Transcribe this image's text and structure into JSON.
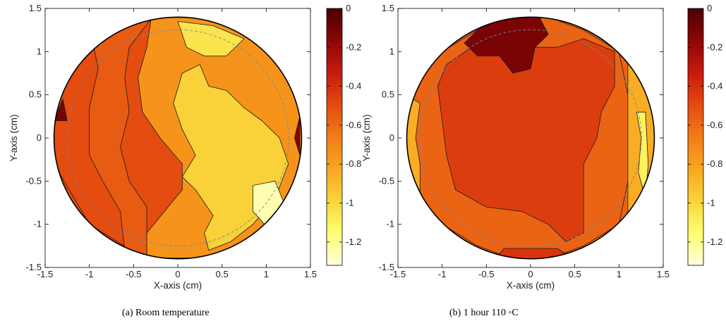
{
  "colormap": {
    "name": "hot-reversed",
    "stops": [
      "#4a0000",
      "#8c0606",
      "#c81a0c",
      "#e44a10",
      "#f17d16",
      "#f8a620",
      "#f9d43a",
      "#ffff70",
      "#fffde0"
    ]
  },
  "chart_data": [
    {
      "type": "heatmap",
      "caption": "(a) Room temperature",
      "xlabel": "X-axis (cm)",
      "ylabel": "Y-axis (cm)",
      "xlim": [
        -1.5,
        1.5
      ],
      "ylim": [
        -1.5,
        1.5
      ],
      "xticks": [
        -1.5,
        -1,
        -0.5,
        0,
        0.5,
        1,
        1.5
      ],
      "yticks": [
        -1.5,
        -1,
        -0.5,
        0,
        0.5,
        1,
        1.5
      ],
      "xtick_labels": [
        "-1.5",
        "-1",
        "-0.5",
        "0",
        "0.5",
        "1",
        "1.5"
      ],
      "ytick_labels": [
        "-1.5",
        "-1",
        "-0.5",
        "0",
        "0.5",
        "1",
        "1.5"
      ],
      "colorbar": {
        "range": [
          -1.32,
          0
        ],
        "ticks": [
          0,
          -0.2,
          -0.4,
          -0.6,
          -0.8,
          -1,
          -1.2
        ],
        "tick_labels": [
          "0",
          "-0.2",
          "-0.4",
          "-0.6",
          "-0.8",
          "-1",
          "-1.2"
        ]
      },
      "wafer_radius": 1.4,
      "levels": [
        {
          "value": -0.5,
          "polygon": [
            [
              -1.4,
              0
            ],
            [
              1.4,
              0
            ]
          ]
        }
      ],
      "regions": [
        {
          "value": -0.5,
          "points": [
            [
              -1.3,
              1.0
            ],
            [
              -0.8,
              1.3
            ],
            [
              -0.55,
              1.3
            ],
            [
              -0.75,
              0.9
            ],
            [
              -0.9,
              0.6
            ],
            [
              -0.9,
              -0.3
            ],
            [
              -0.7,
              -0.6
            ],
            [
              -0.55,
              -1.0
            ],
            [
              -0.4,
              -1.38
            ],
            [
              -1.0,
              -1.0
            ],
            [
              -1.4,
              -0.3
            ],
            [
              -1.4,
              0.4
            ]
          ]
        },
        {
          "value": -0.55,
          "points": [
            [
              -1.0,
              1.3
            ],
            [
              -0.55,
              1.36
            ],
            [
              -0.3,
              1.38
            ],
            [
              -0.55,
              1.05
            ],
            [
              -0.6,
              0.7
            ],
            [
              -0.55,
              0.3
            ],
            [
              -0.65,
              -0.1
            ],
            [
              -0.55,
              -0.5
            ],
            [
              -0.35,
              -0.8
            ],
            [
              -0.35,
              -1.1
            ],
            [
              -0.35,
              -1.39
            ],
            [
              -0.6,
              -1.3
            ],
            [
              -0.65,
              -0.85
            ],
            [
              -0.85,
              -0.5
            ],
            [
              -1.0,
              -0.2
            ],
            [
              -1.0,
              0.35
            ],
            [
              -0.9,
              0.8
            ]
          ]
        },
        {
          "value": -0.75,
          "points": [
            [
              -0.3,
              1.39
            ],
            [
              0.3,
              1.4
            ],
            [
              0.8,
              1.2
            ],
            [
              1.25,
              0.8
            ],
            [
              1.4,
              0.3
            ],
            [
              1.4,
              -0.3
            ],
            [
              1.2,
              -0.85
            ],
            [
              0.8,
              -1.2
            ],
            [
              0.3,
              -1.39
            ],
            [
              -0.35,
              -1.39
            ],
            [
              -0.35,
              -1.1
            ],
            [
              -0.15,
              -0.85
            ],
            [
              0.05,
              -0.6
            ],
            [
              0.05,
              -0.3
            ],
            [
              -0.2,
              0.0
            ],
            [
              -0.4,
              0.3
            ],
            [
              -0.45,
              0.7
            ],
            [
              -0.35,
              1.05
            ]
          ]
        },
        {
          "value": -0.98,
          "points": [
            [
              0.05,
              0.75
            ],
            [
              0.25,
              0.85
            ],
            [
              0.35,
              0.6
            ],
            [
              0.55,
              0.55
            ],
            [
              0.75,
              0.35
            ],
            [
              0.95,
              0.2
            ],
            [
              1.15,
              0.0
            ],
            [
              1.25,
              -0.3
            ],
            [
              1.1,
              -0.7
            ],
            [
              0.85,
              -1.0
            ],
            [
              0.6,
              -1.2
            ],
            [
              0.35,
              -1.3
            ],
            [
              0.3,
              -1.1
            ],
            [
              0.4,
              -0.9
            ],
            [
              0.2,
              -0.6
            ],
            [
              0.05,
              -0.45
            ],
            [
              0.2,
              -0.2
            ],
            [
              0.05,
              0.1
            ],
            [
              -0.05,
              0.4
            ]
          ]
        },
        {
          "value": -1.05,
          "points": [
            [
              0.0,
              1.35
            ],
            [
              0.4,
              1.3
            ],
            [
              0.75,
              1.15
            ],
            [
              0.55,
              0.95
            ],
            [
              0.3,
              0.95
            ],
            [
              0.1,
              1.05
            ]
          ]
        },
        {
          "value": -1.25,
          "points": [
            [
              0.85,
              -0.55
            ],
            [
              1.1,
              -0.5
            ],
            [
              1.2,
              -0.75
            ],
            [
              0.98,
              -1.0
            ],
            [
              0.85,
              -0.85
            ]
          ]
        },
        {
          "value": -0.1,
          "points": [
            [
              -1.4,
              0.2
            ],
            [
              -1.3,
              0.45
            ],
            [
              -1.25,
              0.2
            ]
          ]
        },
        {
          "value": -0.15,
          "points": [
            [
              1.38,
              0.25
            ],
            [
              1.38,
              -0.2
            ],
            [
              1.32,
              0.0
            ]
          ]
        }
      ]
    },
    {
      "type": "heatmap",
      "caption": "(b) 1 hour 110 ◦C",
      "xlabel": "X-axis (cm)",
      "ylabel": "Y-axis (cm)",
      "xlim": [
        -1.5,
        1.5
      ],
      "ylim": [
        -1.5,
        1.5
      ],
      "xticks": [
        -1.5,
        -1,
        -0.5,
        0,
        0.5,
        1,
        1.5
      ],
      "yticks": [
        -1.5,
        -1,
        -0.5,
        0,
        0.5,
        1,
        1.5
      ],
      "xtick_labels": [
        "-1.5",
        "-1",
        "-0.5",
        "0",
        "0.5",
        "1",
        "1.5"
      ],
      "ytick_labels": [
        "-1.5",
        "-1",
        "-0.5",
        "0",
        "0.5",
        "1",
        "1.5"
      ],
      "colorbar": {
        "range": [
          -1.32,
          0
        ],
        "ticks": [
          0,
          -0.2,
          -0.4,
          -0.6,
          -0.8,
          -1,
          -1.2
        ],
        "tick_labels": [
          "0",
          "-0.2",
          "-0.4",
          "-0.6",
          "-0.8",
          "-1",
          "-1.2"
        ]
      },
      "wafer_radius": 1.4,
      "regions": [
        {
          "value": -0.58,
          "points": [
            [
              -1.4,
              0.6
            ],
            [
              -1.4,
              -0.6
            ],
            [
              -1.0,
              -1.0
            ],
            [
              -0.6,
              -1.25
            ],
            [
              -0.2,
              -1.4
            ],
            [
              0.2,
              -1.4
            ],
            [
              0.6,
              -1.25
            ],
            [
              1.0,
              -1.0
            ],
            [
              1.1,
              -0.5
            ],
            [
              1.1,
              0.5
            ],
            [
              1.0,
              1.0
            ],
            [
              0.6,
              1.25
            ],
            [
              0.2,
              1.4
            ],
            [
              -0.2,
              1.4
            ],
            [
              -0.6,
              1.25
            ],
            [
              -1.0,
              1.0
            ]
          ]
        },
        {
          "value": -0.45,
          "points": [
            [
              -0.95,
              0.85
            ],
            [
              -0.6,
              1.1
            ],
            [
              -0.2,
              1.05
            ],
            [
              0.3,
              1.05
            ],
            [
              0.6,
              1.15
            ],
            [
              0.95,
              1.0
            ],
            [
              0.95,
              0.6
            ],
            [
              0.8,
              0.3
            ],
            [
              0.75,
              0.0
            ],
            [
              0.6,
              -0.3
            ],
            [
              0.6,
              -0.7
            ],
            [
              0.6,
              -1.1
            ],
            [
              0.4,
              -1.2
            ],
            [
              0.2,
              -1.0
            ],
            [
              0.1,
              -0.95
            ],
            [
              -0.1,
              -0.85
            ],
            [
              -0.5,
              -0.8
            ],
            [
              -0.85,
              -0.6
            ],
            [
              -0.95,
              -0.2
            ],
            [
              -1.0,
              0.2
            ],
            [
              -1.05,
              0.6
            ]
          ]
        },
        {
          "value": -0.12,
          "points": [
            [
              -0.75,
              1.1
            ],
            [
              -0.45,
              1.4
            ],
            [
              0.1,
              1.4
            ],
            [
              0.2,
              1.2
            ],
            [
              0.05,
              1.05
            ],
            [
              0.0,
              0.8
            ],
            [
              -0.2,
              0.75
            ],
            [
              -0.35,
              0.95
            ],
            [
              -0.6,
              0.95
            ]
          ]
        },
        {
          "value": -0.42,
          "points": [
            [
              -0.3,
              -1.28
            ],
            [
              0.3,
              -1.28
            ],
            [
              0.5,
              -1.4
            ],
            [
              -0.4,
              -1.4
            ]
          ]
        },
        {
          "value": -0.85,
          "points": [
            [
              -1.4,
              0.5
            ],
            [
              -1.4,
              -0.5
            ],
            [
              -1.25,
              -0.7
            ],
            [
              -1.25,
              -0.3
            ],
            [
              -1.3,
              0.0
            ],
            [
              -1.25,
              0.4
            ]
          ]
        },
        {
          "value": -0.85,
          "points": [
            [
              1.1,
              1.0
            ],
            [
              1.1,
              -1.0
            ],
            [
              1.4,
              -0.4
            ],
            [
              1.4,
              0.6
            ],
            [
              1.3,
              0.9
            ]
          ]
        },
        {
          "value": -1.1,
          "points": [
            [
              1.2,
              0.3
            ],
            [
              1.3,
              0.3
            ],
            [
              1.33,
              -0.3
            ],
            [
              1.3,
              -0.7
            ],
            [
              1.22,
              -0.4
            ],
            [
              1.25,
              0.0
            ]
          ]
        }
      ]
    }
  ]
}
